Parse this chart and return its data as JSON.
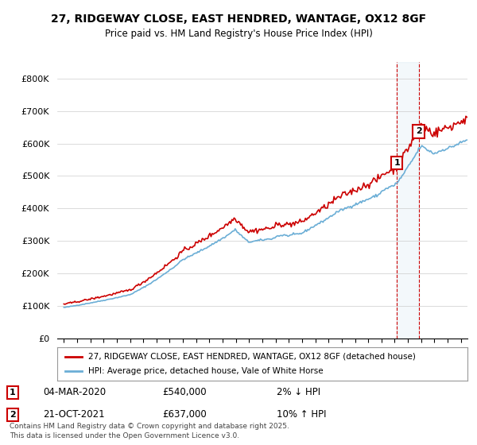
{
  "title": "27, RIDGEWAY CLOSE, EAST HENDRED, WANTAGE, OX12 8GF",
  "subtitle": "Price paid vs. HM Land Registry's House Price Index (HPI)",
  "legend_line1": "27, RIDGEWAY CLOSE, EAST HENDRED, WANTAGE, OX12 8GF (detached house)",
  "legend_line2": "HPI: Average price, detached house, Vale of White Horse",
  "sale1_label": "1",
  "sale1_date": "04-MAR-2020",
  "sale1_price": "£540,000",
  "sale1_hpi": "2% ↓ HPI",
  "sale2_label": "2",
  "sale2_date": "21-OCT-2021",
  "sale2_price": "£637,000",
  "sale2_hpi": "10% ↑ HPI",
  "footer": "Contains HM Land Registry data © Crown copyright and database right 2025.\nThis data is licensed under the Open Government Licence v3.0.",
  "red_color": "#cc0000",
  "blue_color": "#6baed6",
  "bg_color": "#ffffff",
  "sale1_year": 2020.17,
  "sale2_year": 2021.81,
  "marker1_price": 540000,
  "marker2_price": 637000,
  "ylim_max": 850000,
  "ylim_min": 0,
  "xlim_min": 1994.5,
  "xlim_max": 2025.5
}
